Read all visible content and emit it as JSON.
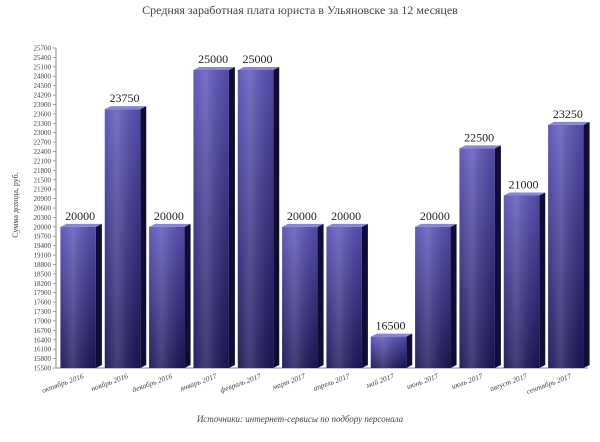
{
  "chart_data": {
    "type": "bar",
    "title": "Средняя заработная плата юриста в Ульяновске за 12 месяцев",
    "ylabel": "Сумма дохода, руб.",
    "xlabel": "Источники: интернет-сервисы по подбору персонала",
    "categories": [
      "октябрь 2016",
      "ноябрь 2016",
      "декабрь 2016",
      "январь 2017",
      "февраль 2017",
      "март 2017",
      "апрель 2017",
      "май 2017",
      "июнь 2017",
      "июль 2017",
      "август 2017",
      "сентябрь 2017"
    ],
    "values": [
      20000,
      23750,
      20000,
      25000,
      25000,
      20000,
      20000,
      16500,
      20000,
      22500,
      21000,
      23250
    ],
    "ylim": [
      15500,
      25700
    ],
    "yticks": [
      "15500",
      "15800",
      "16100",
      "16400",
      "16700",
      "17000",
      "17300",
      "17600",
      "17900",
      "18200",
      "18500",
      "18800",
      "19100",
      "19400",
      "19700",
      "20000",
      "20300",
      "20600",
      "20900",
      "21200",
      "21500",
      "21800",
      "22100",
      "22400",
      "22700",
      "23000",
      "23300",
      "23600",
      "23900",
      "24200",
      "24500",
      "24800",
      "25100",
      "25400",
      "25700"
    ],
    "legend": "none",
    "colors": {
      "bar_top": "#5a52b8",
      "bar_bottom": "#1a1557",
      "bar_side": "#0f0c38",
      "bar_cap": "#8a84d6"
    }
  }
}
